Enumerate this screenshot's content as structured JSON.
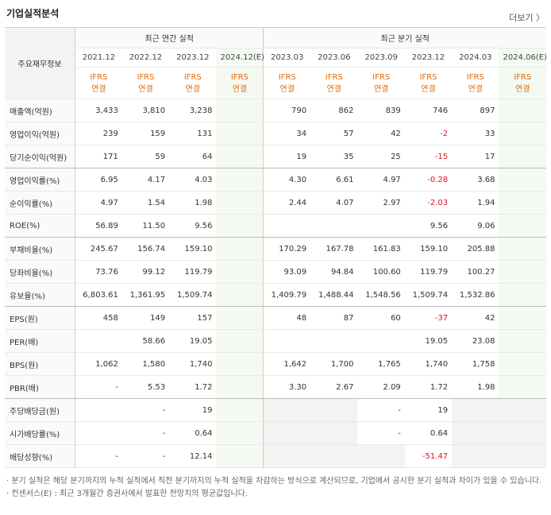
{
  "header": {
    "title": "기업실적분석",
    "more": "더보기 〉"
  },
  "table": {
    "label_header": "주요재무정보",
    "groups": [
      {
        "title": "최근 연간 실적",
        "periods": [
          "2021.12",
          "2022.12",
          "2023.12",
          "2024.12(E)"
        ],
        "basis": [
          "IFRS 연결",
          "IFRS 연결",
          "IFRS 연결",
          "IFRS 연결"
        ]
      },
      {
        "title": "최근 분기 실적",
        "periods": [
          "2023.03",
          "2023.06",
          "2023.09",
          "2023.12",
          "2024.03",
          "2024.06(E)"
        ],
        "basis": [
          "IFRS 연결",
          "IFRS 연결",
          "IFRS 연결",
          "IFRS 연결",
          "IFRS 연결",
          "IFRS 연결"
        ]
      }
    ],
    "rows": [
      {
        "label": "매출액(억원)",
        "values": [
          "3,433",
          "3,810",
          "3,238",
          null,
          "790",
          "862",
          "839",
          "746",
          "897",
          null
        ]
      },
      {
        "label": "영업이익(억원)",
        "values": [
          "239",
          "159",
          "131",
          null,
          "34",
          "57",
          "42",
          "-2",
          "33",
          null
        ]
      },
      {
        "label": "당기순이익(억원)",
        "values": [
          "171",
          "59",
          "64",
          null,
          "19",
          "35",
          "25",
          "-15",
          "17",
          null
        ],
        "group_end": true
      },
      {
        "label": "영업이익률(%)",
        "values": [
          "6.95",
          "4.17",
          "4.03",
          null,
          "4.30",
          "6.61",
          "4.97",
          "-0.28",
          "3.68",
          null
        ]
      },
      {
        "label": "순이익률(%)",
        "values": [
          "4.97",
          "1.54",
          "1.98",
          null,
          "2.44",
          "4.07",
          "2.97",
          "-2.03",
          "1.94",
          null
        ]
      },
      {
        "label": "ROE(%)",
        "values": [
          "56.89",
          "11.50",
          "9.56",
          null,
          null,
          null,
          null,
          "9.56",
          "9.06",
          null
        ],
        "group_end": true
      },
      {
        "label": "부채비율(%)",
        "values": [
          "245.67",
          "156.74",
          "159.10",
          null,
          "170.29",
          "167.78",
          "161.83",
          "159.10",
          "205.88",
          null
        ]
      },
      {
        "label": "당좌비율(%)",
        "values": [
          "73.76",
          "99.12",
          "119.79",
          null,
          "93.09",
          "94.84",
          "100.60",
          "119.79",
          "100.27",
          null
        ]
      },
      {
        "label": "유보율(%)",
        "values": [
          "6,803.61",
          "1,361.95",
          "1,509.74",
          null,
          "1,409.79",
          "1,488.44",
          "1,548.56",
          "1,509.74",
          "1,532.86",
          null
        ],
        "group_end": true
      },
      {
        "label": "EPS(원)",
        "values": [
          "458",
          "149",
          "157",
          null,
          "48",
          "87",
          "60",
          "-37",
          "42",
          null
        ]
      },
      {
        "label": "PER(배)",
        "values": [
          null,
          "58.66",
          "19.05",
          null,
          null,
          null,
          null,
          "19.05",
          "23.08",
          null
        ]
      },
      {
        "label": "BPS(원)",
        "values": [
          "1,062",
          "1,580",
          "1,740",
          null,
          "1,642",
          "1,700",
          "1,765",
          "1,740",
          "1,758",
          null
        ]
      },
      {
        "label": "PBR(배)",
        "values": [
          "-",
          "5.53",
          "1.72",
          null,
          "3.30",
          "2.67",
          "2.09",
          "1.72",
          "1.98",
          null
        ],
        "group_end": true
      },
      {
        "label": "주당배당금(원)",
        "values": [
          null,
          "-",
          "19",
          null,
          null,
          null,
          "-",
          "19",
          null,
          null
        ],
        "shaded": true
      },
      {
        "label": "시가배당률(%)",
        "values": [
          null,
          "-",
          "0.64",
          null,
          null,
          null,
          "-",
          "0.64",
          null,
          null
        ],
        "shaded": true
      },
      {
        "label": "배당성향(%)",
        "values": [
          "-",
          "-",
          "12.14",
          null,
          null,
          null,
          null,
          "-51.47",
          null,
          null
        ],
        "shaded": true
      }
    ]
  },
  "notes": [
    "· 분기 실적은 해당 분기까지의 누적 실적에서 직전 분기까지의 누적 실적을 차감하는 방식으로 계산되므로, 기업에서 공시한 분기 실적과 차이가 있을 수 있습니다.",
    "· 컨센서스(E) : 최근 3개월간 증권사에서 발표한 전망치의 평균값입니다."
  ]
}
